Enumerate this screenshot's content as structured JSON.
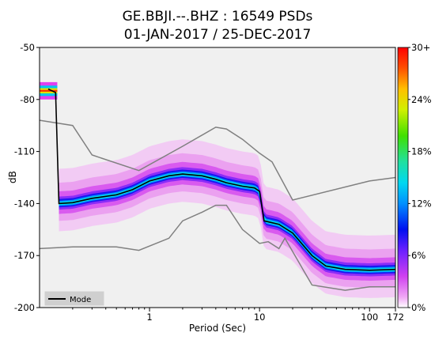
{
  "title_line1": "GE.BBJI.--.BHZ : 16549 PSDs",
  "title_line2": "01-JAN-2017 / 25-DEC-2017",
  "chart_data": {
    "type": "heatmap",
    "title": "GE.BBJI.--.BHZ : 16549 PSDs",
    "subtitle": "01-JAN-2017 / 25-DEC-2017",
    "xlabel": "Period (Sec)",
    "ylabel": "dB",
    "x_scale": "log",
    "xlim": [
      0.1,
      172
    ],
    "ylim": [
      -200,
      -50
    ],
    "x_ticks": [
      {
        "value": 1,
        "label": "1"
      },
      {
        "value": 10,
        "label": "10"
      },
      {
        "value": 100,
        "label": "100"
      },
      {
        "value": 172,
        "label": "172"
      }
    ],
    "y_ticks": [
      {
        "value": -50,
        "label": "-50"
      },
      {
        "value": -80,
        "label": "-80"
      },
      {
        "value": -110,
        "label": "-110"
      },
      {
        "value": -140,
        "label": "-140"
      },
      {
        "value": -170,
        "label": "-170"
      },
      {
        "value": -200,
        "label": "-200"
      }
    ],
    "colorbar": {
      "range": [
        0,
        30
      ],
      "ticks": [
        {
          "value": 0,
          "label": "0%"
        },
        {
          "value": 6,
          "label": "6%"
        },
        {
          "value": 12,
          "label": "12%"
        },
        {
          "value": 18,
          "label": "18%"
        },
        {
          "value": 24,
          "label": "24%"
        },
        {
          "value": 30,
          "label": "30+"
        }
      ]
    },
    "legend": {
      "position": "bottom-left",
      "entries": [
        "Mode"
      ]
    },
    "series": [
      {
        "name": "Mode",
        "color": "#000000",
        "points": [
          [
            0.12,
            -74
          ],
          [
            0.14,
            -76
          ],
          [
            0.15,
            -140
          ],
          [
            0.2,
            -139.5
          ],
          [
            0.3,
            -137
          ],
          [
            0.5,
            -135
          ],
          [
            0.7,
            -132
          ],
          [
            1.0,
            -127
          ],
          [
            1.5,
            -124
          ],
          [
            2,
            -123
          ],
          [
            3,
            -124
          ],
          [
            4,
            -126
          ],
          [
            5,
            -128
          ],
          [
            7,
            -130
          ],
          [
            9,
            -131
          ],
          [
            10,
            -133
          ],
          [
            11,
            -150
          ],
          [
            15,
            -152
          ],
          [
            20,
            -157
          ],
          [
            30,
            -170
          ],
          [
            40,
            -176
          ],
          [
            60,
            -178
          ],
          [
            100,
            -178.5
          ],
          [
            172,
            -178
          ]
        ]
      },
      {
        "name": "",
        "color": "#808080",
        "points": [
          [
            0.1,
            -92
          ],
          [
            0.2,
            -95
          ],
          [
            0.3,
            -112
          ],
          [
            0.8,
            -121
          ],
          [
            2,
            -107
          ],
          [
            4,
            -96
          ],
          [
            5,
            -97
          ],
          [
            7,
            -103
          ],
          [
            10,
            -111
          ],
          [
            13,
            -116
          ],
          [
            20,
            -138
          ],
          [
            100,
            -127
          ],
          [
            172,
            -125
          ]
        ]
      },
      {
        "name": "",
        "color": "#808080",
        "points": [
          [
            0.1,
            -166
          ],
          [
            0.2,
            -165
          ],
          [
            0.5,
            -165
          ],
          [
            0.8,
            -167
          ],
          [
            1.5,
            -160
          ],
          [
            2,
            -150
          ],
          [
            3,
            -145
          ],
          [
            4,
            -141
          ],
          [
            5,
            -141
          ],
          [
            7,
            -155
          ],
          [
            10,
            -163
          ],
          [
            12,
            -162
          ],
          [
            15,
            -166
          ],
          [
            17,
            -160
          ],
          [
            30,
            -187
          ],
          [
            60,
            -190
          ],
          [
            100,
            -188
          ],
          [
            172,
            -188
          ]
        ]
      }
    ]
  }
}
